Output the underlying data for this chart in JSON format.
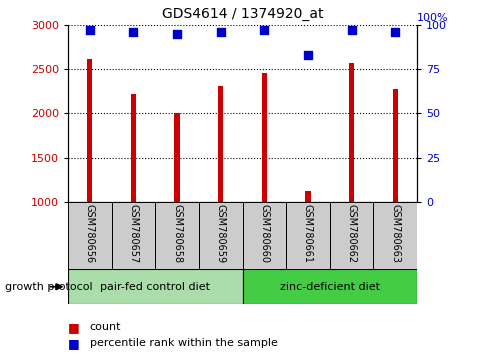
{
  "title": "GDS4614 / 1374920_at",
  "samples": [
    "GSM780656",
    "GSM780657",
    "GSM780658",
    "GSM780659",
    "GSM780660",
    "GSM780661",
    "GSM780662",
    "GSM780663"
  ],
  "counts": [
    2610,
    2220,
    2005,
    2305,
    2455,
    1120,
    2565,
    2280
  ],
  "percentiles": [
    97,
    96,
    95,
    96,
    97,
    83,
    97,
    96
  ],
  "ylim_left": [
    1000,
    3000
  ],
  "ylim_right": [
    0,
    100
  ],
  "yticks_left": [
    1000,
    1500,
    2000,
    2500,
    3000
  ],
  "yticks_right": [
    0,
    25,
    50,
    75,
    100
  ],
  "bar_color": "#cc0000",
  "dot_color": "#0000cc",
  "bar_width": 0.12,
  "group1_label": "pair-fed control diet",
  "group2_label": "zinc-deficient diet",
  "group1_color": "#aaddaa",
  "group2_color": "#44cc44",
  "protocol_label": "growth protocol",
  "legend_count": "count",
  "legend_percentile": "percentile rank within the sample",
  "grid_color": "#000000",
  "background_color": "#ffffff",
  "label_area_color": "#cccccc",
  "group1_indices": [
    0,
    1,
    2,
    3
  ],
  "group2_indices": [
    4,
    5,
    6,
    7
  ]
}
